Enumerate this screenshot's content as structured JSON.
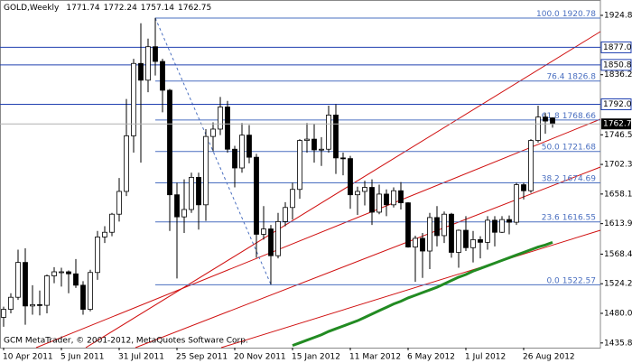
{
  "chart_data": {
    "type": "candlestick",
    "title": "GOLD,Weekly",
    "footnote": "GCM MetaTrader, © 2001-2012, MetaQuotes Software Corp.",
    "categories": [
      "10 Apr 2011",
      null,
      null,
      null,
      null,
      null,
      null,
      null,
      "5 Jun 2011",
      null,
      null,
      null,
      null,
      null,
      null,
      null,
      "31 Jul 2011",
      null,
      null,
      null,
      null,
      null,
      null,
      null,
      "25 Sep 2011",
      null,
      null,
      null,
      null,
      null,
      null,
      null,
      "20 Nov 2011",
      null,
      null,
      null,
      null,
      null,
      null,
      null,
      "15 Jan 2012",
      null,
      null,
      null,
      null,
      null,
      null,
      null,
      "11 Mar 2012",
      null,
      null,
      null,
      null,
      null,
      null,
      null,
      "6 May 2012",
      null,
      null,
      null,
      null,
      null,
      null,
      null,
      "1 Jul 2012",
      null,
      null,
      null,
      null,
      null,
      null,
      null,
      "26 Aug 2012",
      null,
      null,
      null,
      null
    ],
    "open": [
      1474,
      1486,
      1504,
      1556,
      1491,
      1493,
      1492,
      1536,
      1542,
      1542,
      1539,
      1522,
      1486,
      1541,
      1594,
      1601,
      1628,
      1662,
      1745,
      1853,
      1828,
      1878,
      1856,
      1813,
      1657,
      1624,
      1635,
      1683,
      1642,
      1744,
      1755,
      1788,
      1725,
      1697,
      1746,
      1713,
      1598,
      1606,
      1566,
      1617,
      1638,
      1665,
      1738,
      1740,
      1724,
      1725,
      1776,
      1712,
      1711,
      1657,
      1662,
      1668,
      1631,
      1658,
      1642,
      1663,
      1645,
      1579,
      1592,
      1573,
      1623,
      1596,
      1628,
      1571,
      1604,
      1578,
      1590,
      1586,
      1619,
      1601,
      1620,
      1616,
      1672,
      1663,
      1738,
      1773,
      1771.74
    ],
    "high": [
      1490,
      1510,
      1575,
      1577,
      1522,
      1514,
      1538,
      1549,
      1548,
      1544,
      1561,
      1528,
      1545,
      1603,
      1610,
      1630,
      1682,
      1800,
      1860,
      1913,
      1890,
      1921,
      1860,
      1815,
      1675,
      1680,
      1690,
      1690,
      1755,
      1765,
      1803,
      1797,
      1730,
      1764,
      1761,
      1718,
      1640,
      1612,
      1630,
      1646,
      1675,
      1740,
      1764,
      1763,
      1743,
      1790,
      1792,
      1720,
      1715,
      1669,
      1678,
      1680,
      1672,
      1665,
      1668,
      1676,
      1646,
      1596,
      1600,
      1630,
      1640,
      1632,
      1630,
      1605,
      1625,
      1603,
      1595,
      1625,
      1625,
      1625,
      1626,
      1675,
      1675,
      1740,
      1790,
      1779,
      1772.24
    ],
    "low": [
      1460,
      1480,
      1500,
      1463,
      1478,
      1477,
      1480,
      1525,
      1520,
      1510,
      1518,
      1478,
      1483,
      1530,
      1585,
      1595,
      1617,
      1655,
      1720,
      1705,
      1810,
      1835,
      1780,
      1603,
      1532,
      1600,
      1630,
      1605,
      1618,
      1722,
      1746,
      1720,
      1668,
      1690,
      1704,
      1563,
      1590,
      1523,
      1562,
      1610,
      1620,
      1651,
      1720,
      1705,
      1700,
      1720,
      1688,
      1686,
      1636,
      1627,
      1641,
      1612,
      1628,
      1625,
      1638,
      1635,
      1578,
      1527,
      1533,
      1546,
      1580,
      1585,
      1563,
      1548,
      1573,
      1556,
      1562,
      1575,
      1580,
      1600,
      1598,
      1612,
      1650,
      1660,
      1735,
      1748,
      1757.14
    ],
    "close": [
      1486,
      1504,
      1556,
      1491,
      1493,
      1492,
      1536,
      1542,
      1542,
      1539,
      1522,
      1486,
      1541,
      1594,
      1601,
      1628,
      1662,
      1745,
      1853,
      1828,
      1878,
      1856,
      1813,
      1657,
      1624,
      1635,
      1683,
      1642,
      1744,
      1755,
      1788,
      1725,
      1697,
      1746,
      1713,
      1598,
      1606,
      1566,
      1617,
      1638,
      1665,
      1738,
      1740,
      1724,
      1725,
      1776,
      1712,
      1711,
      1657,
      1662,
      1668,
      1631,
      1658,
      1642,
      1663,
      1645,
      1579,
      1592,
      1573,
      1623,
      1596,
      1628,
      1571,
      1604,
      1578,
      1590,
      1586,
      1619,
      1601,
      1620,
      1616,
      1672,
      1663,
      1738,
      1773,
      1767,
      1762.75
    ],
    "up_color": "#ffffff",
    "down_color": "#000000",
    "ma": {
      "color": "#228b22",
      "values": [
        null,
        null,
        null,
        null,
        null,
        null,
        null,
        null,
        null,
        null,
        null,
        null,
        null,
        null,
        null,
        null,
        null,
        null,
        null,
        null,
        null,
        null,
        null,
        null,
        null,
        null,
        null,
        null,
        null,
        null,
        null,
        null,
        null,
        null,
        null,
        null,
        null,
        null,
        null,
        null,
        1432,
        1436,
        1440,
        1444,
        1448,
        1453,
        1457,
        1461,
        1465,
        1469,
        1474,
        1479,
        1484,
        1489,
        1494,
        1498,
        1503,
        1507,
        1511,
        1515,
        1519,
        1524,
        1529,
        1534,
        1538,
        1543,
        1547,
        1551,
        1555,
        1559,
        1563,
        1567,
        1571,
        1575,
        1579,
        1582,
        1586
      ]
    },
    "ylim": [
      1428.8,
      1947.7
    ],
    "yticks": [
      {
        "value": 1924.8,
        "label": "1924.80"
      },
      {
        "value": 1836.2,
        "label": "1836.20"
      },
      {
        "value": 1746.5,
        "label": "1746.50"
      },
      {
        "value": 1702.3,
        "label": "1702.30"
      },
      {
        "value": 1658.1,
        "label": "1658.10"
      },
      {
        "value": 1613.9,
        "label": "1613.90"
      },
      {
        "value": 1568.4,
        "label": "1568.40"
      },
      {
        "value": 1524.2,
        "label": "1524.20"
      },
      {
        "value": 1480,
        "label": "1480.00"
      },
      {
        "value": 1435.8,
        "label": "1435.80"
      }
    ],
    "h_lines": [
      1877.03,
      1850.81,
      {
        "value": 1792,
        "label": "1792.00"
      }
    ],
    "fib_levels": [
      {
        "ratio": "100.0",
        "price": 1920.78
      },
      {
        "ratio": "76.4",
        "price": 1826.8
      },
      {
        "ratio": "61.8",
        "price": 1768.66
      },
      {
        "ratio": "50.0",
        "price": 1721.68
      },
      {
        "ratio": "38.2",
        "price": 1674.69
      },
      {
        "ratio": "23.6",
        "price": 1616.55
      },
      {
        "ratio": "0.0",
        "price": 1522.57
      }
    ]
  }
}
